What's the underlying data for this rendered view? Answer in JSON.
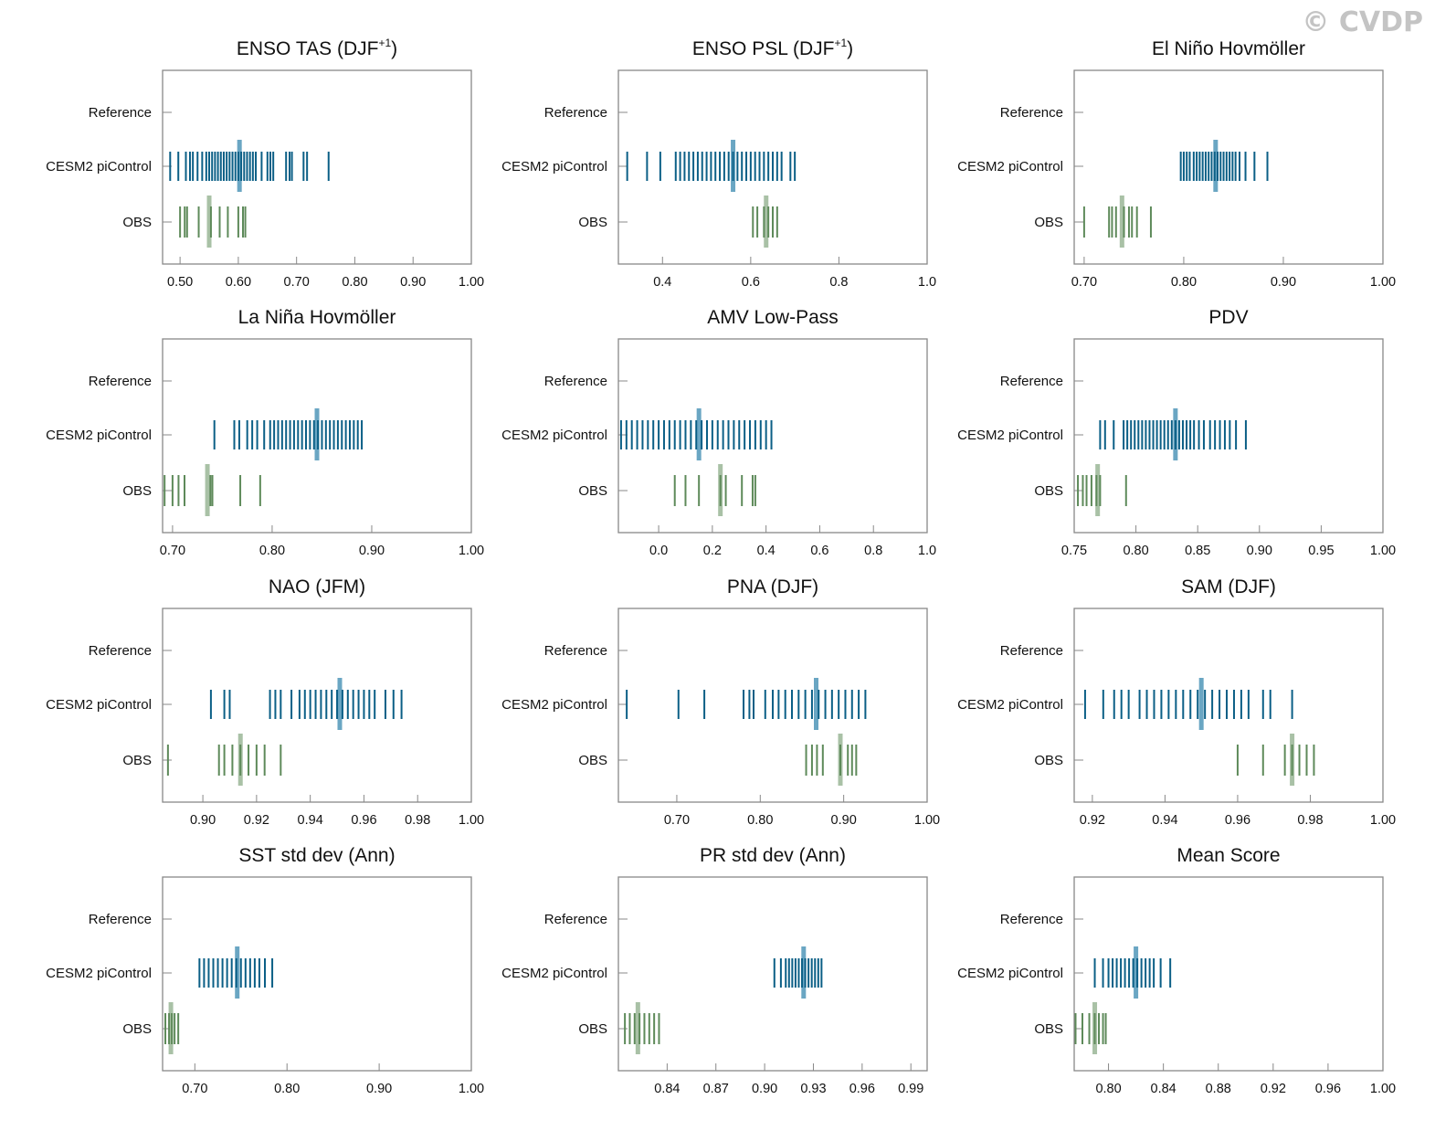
{
  "watermark": "© CVDP",
  "colors": {
    "model": "#0b5f86",
    "model_mean": "#6aa6c3",
    "obs": "#5e8a5a",
    "obs_mean": "#a9c1a6",
    "frame": "#888888"
  },
  "chart_data": [
    {
      "type": "strip",
      "title": "ENSO TAS (DJF",
      "title_sup": "+1",
      "title_end": ")",
      "rows": [
        "Reference",
        "CESM2 piControl",
        "OBS"
      ],
      "xlim": [
        0.47,
        1.0
      ],
      "ticks": [
        0.5,
        0.6,
        0.7,
        0.8,
        0.9,
        1.0
      ],
      "tick_labels": [
        "0.50",
        "0.60",
        "0.70",
        "0.80",
        "0.90",
        "1.00"
      ],
      "model": [
        0.483,
        0.497,
        0.51,
        0.517,
        0.522,
        0.53,
        0.538,
        0.545,
        0.55,
        0.555,
        0.56,
        0.565,
        0.57,
        0.575,
        0.58,
        0.585,
        0.59,
        0.595,
        0.6,
        0.605,
        0.61,
        0.615,
        0.62,
        0.625,
        0.63,
        0.64,
        0.65,
        0.655,
        0.66,
        0.682,
        0.688,
        0.692,
        0.712,
        0.718,
        0.755
      ],
      "model_mean": 0.602,
      "obs": [
        0.5,
        0.508,
        0.512,
        0.532,
        0.553,
        0.568,
        0.582,
        0.6,
        0.608,
        0.612
      ],
      "obs_mean": 0.55
    },
    {
      "type": "strip",
      "title": "ENSO PSL (DJF",
      "title_sup": "+1",
      "title_end": ")",
      "rows": [
        "Reference",
        "CESM2 piControl",
        "OBS"
      ],
      "xlim": [
        0.3,
        1.0
      ],
      "ticks": [
        0.4,
        0.6,
        0.8,
        1.0
      ],
      "tick_labels": [
        "0.4",
        "0.6",
        "0.8",
        "1.0"
      ],
      "model": [
        0.32,
        0.365,
        0.395,
        0.43,
        0.44,
        0.45,
        0.46,
        0.47,
        0.48,
        0.49,
        0.5,
        0.51,
        0.52,
        0.53,
        0.54,
        0.55,
        0.56,
        0.57,
        0.58,
        0.59,
        0.6,
        0.61,
        0.62,
        0.63,
        0.64,
        0.65,
        0.66,
        0.67,
        0.69,
        0.7
      ],
      "model_mean": 0.56,
      "obs": [
        0.605,
        0.615,
        0.63,
        0.64,
        0.65,
        0.66
      ],
      "obs_mean": 0.635
    },
    {
      "type": "strip",
      "title": "El Niño Hovmöller",
      "rows": [
        "Reference",
        "CESM2 piControl",
        "OBS"
      ],
      "xlim": [
        0.69,
        1.0
      ],
      "ticks": [
        0.7,
        0.8,
        0.9,
        1.0
      ],
      "tick_labels": [
        "0.70",
        "0.80",
        "0.90",
        "1.00"
      ],
      "model": [
        0.797,
        0.8,
        0.803,
        0.806,
        0.81,
        0.813,
        0.816,
        0.819,
        0.822,
        0.825,
        0.828,
        0.831,
        0.834,
        0.837,
        0.84,
        0.843,
        0.846,
        0.849,
        0.852,
        0.856,
        0.862,
        0.871,
        0.884
      ],
      "model_mean": 0.832,
      "obs": [
        0.7,
        0.725,
        0.728,
        0.732,
        0.74,
        0.745,
        0.748,
        0.753,
        0.767
      ],
      "obs_mean": 0.738
    },
    {
      "type": "strip",
      "title": "La Niña Hovmöller",
      "rows": [
        "Reference",
        "CESM2 piControl",
        "OBS"
      ],
      "xlim": [
        0.69,
        1.0
      ],
      "ticks": [
        0.7,
        0.8,
        0.9,
        1.0
      ],
      "tick_labels": [
        "0.70",
        "0.80",
        "0.90",
        "1.00"
      ],
      "model": [
        0.742,
        0.762,
        0.767,
        0.775,
        0.78,
        0.785,
        0.792,
        0.798,
        0.802,
        0.806,
        0.81,
        0.814,
        0.818,
        0.822,
        0.826,
        0.83,
        0.834,
        0.838,
        0.842,
        0.846,
        0.85,
        0.854,
        0.858,
        0.862,
        0.866,
        0.87,
        0.874,
        0.878,
        0.882,
        0.886,
        0.89
      ],
      "model_mean": 0.845,
      "obs": [
        0.692,
        0.7,
        0.706,
        0.712,
        0.738,
        0.74,
        0.768,
        0.788
      ],
      "obs_mean": 0.735
    },
    {
      "type": "strip",
      "title": "AMV Low-Pass",
      "rows": [
        "Reference",
        "CESM2 piControl",
        "OBS"
      ],
      "xlim": [
        -0.15,
        1.0
      ],
      "ticks": [
        0.0,
        0.2,
        0.4,
        0.6,
        0.8,
        1.0
      ],
      "tick_labels": [
        "0.0",
        "0.2",
        "0.4",
        "0.6",
        "0.8",
        "1.0"
      ],
      "model": [
        -0.14,
        -0.12,
        -0.1,
        -0.08,
        -0.06,
        -0.04,
        -0.02,
        0.0,
        0.02,
        0.04,
        0.06,
        0.08,
        0.1,
        0.12,
        0.14,
        0.16,
        0.18,
        0.2,
        0.22,
        0.24,
        0.26,
        0.28,
        0.3,
        0.32,
        0.34,
        0.36,
        0.38,
        0.4,
        0.42
      ],
      "model_mean": 0.15,
      "obs": [
        0.06,
        0.1,
        0.15,
        0.23,
        0.25,
        0.31,
        0.35,
        0.36
      ],
      "obs_mean": 0.23
    },
    {
      "type": "strip",
      "title": "PDV",
      "rows": [
        "Reference",
        "CESM2 piControl",
        "OBS"
      ],
      "xlim": [
        0.75,
        1.0
      ],
      "ticks": [
        0.75,
        0.8,
        0.85,
        0.9,
        0.95,
        1.0
      ],
      "tick_labels": [
        "0.75",
        "0.80",
        "0.85",
        "0.90",
        "0.95",
        "1.00"
      ],
      "model": [
        0.771,
        0.775,
        0.782,
        0.79,
        0.793,
        0.796,
        0.799,
        0.802,
        0.805,
        0.808,
        0.811,
        0.814,
        0.817,
        0.82,
        0.823,
        0.826,
        0.829,
        0.832,
        0.835,
        0.838,
        0.841,
        0.844,
        0.847,
        0.851,
        0.855,
        0.86,
        0.864,
        0.868,
        0.872,
        0.876,
        0.881,
        0.889
      ],
      "model_mean": 0.832,
      "obs": [
        0.753,
        0.757,
        0.76,
        0.764,
        0.768,
        0.771,
        0.792
      ],
      "obs_mean": 0.769
    },
    {
      "type": "strip",
      "title": "NAO (JFM)",
      "rows": [
        "Reference",
        "CESM2 piControl",
        "OBS"
      ],
      "xlim": [
        0.885,
        1.0
      ],
      "ticks": [
        0.9,
        0.92,
        0.94,
        0.96,
        0.98,
        1.0
      ],
      "tick_labels": [
        "0.90",
        "0.92",
        "0.94",
        "0.96",
        "0.98",
        "1.00"
      ],
      "model": [
        0.903,
        0.908,
        0.91,
        0.925,
        0.927,
        0.929,
        0.933,
        0.936,
        0.938,
        0.94,
        0.942,
        0.944,
        0.946,
        0.948,
        0.95,
        0.952,
        0.954,
        0.956,
        0.958,
        0.96,
        0.962,
        0.964,
        0.968,
        0.971,
        0.974
      ],
      "model_mean": 0.951,
      "obs": [
        0.887,
        0.906,
        0.908,
        0.911,
        0.914,
        0.917,
        0.92,
        0.923,
        0.929
      ],
      "obs_mean": 0.914
    },
    {
      "type": "strip",
      "title": "PNA (DJF)",
      "rows": [
        "Reference",
        "CESM2 piControl",
        "OBS"
      ],
      "xlim": [
        0.63,
        1.0
      ],
      "ticks": [
        0.7,
        0.8,
        0.9,
        1.0
      ],
      "tick_labels": [
        "0.70",
        "0.80",
        "0.90",
        "1.00"
      ],
      "model": [
        0.64,
        0.702,
        0.733,
        0.78,
        0.787,
        0.792,
        0.806,
        0.815,
        0.822,
        0.83,
        0.838,
        0.846,
        0.854,
        0.862,
        0.87,
        0.878,
        0.886,
        0.894,
        0.902,
        0.91,
        0.918,
        0.926
      ],
      "model_mean": 0.867,
      "obs": [
        0.855,
        0.862,
        0.868,
        0.875,
        0.896,
        0.905,
        0.91,
        0.915
      ],
      "obs_mean": 0.896
    },
    {
      "type": "strip",
      "title": "SAM (DJF)",
      "rows": [
        "Reference",
        "CESM2 piControl",
        "OBS"
      ],
      "xlim": [
        0.915,
        1.0
      ],
      "ticks": [
        0.92,
        0.94,
        0.96,
        0.98,
        1.0
      ],
      "tick_labels": [
        "0.92",
        "0.94",
        "0.96",
        "0.98",
        "1.00"
      ],
      "model": [
        0.918,
        0.923,
        0.926,
        0.928,
        0.93,
        0.933,
        0.935,
        0.937,
        0.939,
        0.941,
        0.943,
        0.945,
        0.947,
        0.949,
        0.951,
        0.953,
        0.955,
        0.957,
        0.959,
        0.961,
        0.963,
        0.967,
        0.969,
        0.975
      ],
      "model_mean": 0.95,
      "obs": [
        0.96,
        0.967,
        0.973,
        0.975,
        0.977,
        0.979,
        0.981
      ],
      "obs_mean": 0.975
    },
    {
      "type": "strip",
      "title": "SST std dev (Ann)",
      "rows": [
        "Reference",
        "CESM2 piControl",
        "OBS"
      ],
      "xlim": [
        0.665,
        1.0
      ],
      "ticks": [
        0.7,
        0.8,
        0.9,
        1.0
      ],
      "tick_labels": [
        "0.70",
        "0.80",
        "0.90",
        "1.00"
      ],
      "model": [
        0.705,
        0.71,
        0.715,
        0.72,
        0.725,
        0.73,
        0.735,
        0.74,
        0.745,
        0.75,
        0.755,
        0.76,
        0.765,
        0.77,
        0.776,
        0.784
      ],
      "model_mean": 0.746,
      "obs": [
        0.668,
        0.672,
        0.675,
        0.678,
        0.682
      ],
      "obs_mean": 0.674
    },
    {
      "type": "strip",
      "title": "PR std dev (Ann)",
      "rows": [
        "Reference",
        "CESM2 piControl",
        "OBS"
      ],
      "xlim": [
        0.81,
        1.0
      ],
      "ticks": [
        0.84,
        0.87,
        0.9,
        0.93,
        0.96,
        0.99
      ],
      "tick_labels": [
        "0.84",
        "0.87",
        "0.90",
        "0.93",
        "0.96",
        "0.99"
      ],
      "model": [
        0.906,
        0.91,
        0.913,
        0.915,
        0.917,
        0.919,
        0.921,
        0.923,
        0.925,
        0.927,
        0.929,
        0.931,
        0.933,
        0.935
      ],
      "model_mean": 0.924,
      "obs": [
        0.814,
        0.817,
        0.82,
        0.823,
        0.826,
        0.829,
        0.832,
        0.835
      ],
      "obs_mean": 0.822
    },
    {
      "type": "strip",
      "title": "Mean Score",
      "rows": [
        "Reference",
        "CESM2 piControl",
        "OBS"
      ],
      "xlim": [
        0.775,
        1.0
      ],
      "ticks": [
        0.8,
        0.84,
        0.88,
        0.92,
        0.96,
        1.0
      ],
      "tick_labels": [
        "0.80",
        "0.84",
        "0.88",
        "0.92",
        "0.96",
        "1.00"
      ],
      "model": [
        0.79,
        0.796,
        0.8,
        0.803,
        0.806,
        0.809,
        0.812,
        0.815,
        0.818,
        0.821,
        0.824,
        0.827,
        0.83,
        0.833,
        0.838,
        0.845
      ],
      "model_mean": 0.82,
      "obs": [
        0.776,
        0.781,
        0.786,
        0.79,
        0.793,
        0.796,
        0.798
      ],
      "obs_mean": 0.79
    }
  ]
}
